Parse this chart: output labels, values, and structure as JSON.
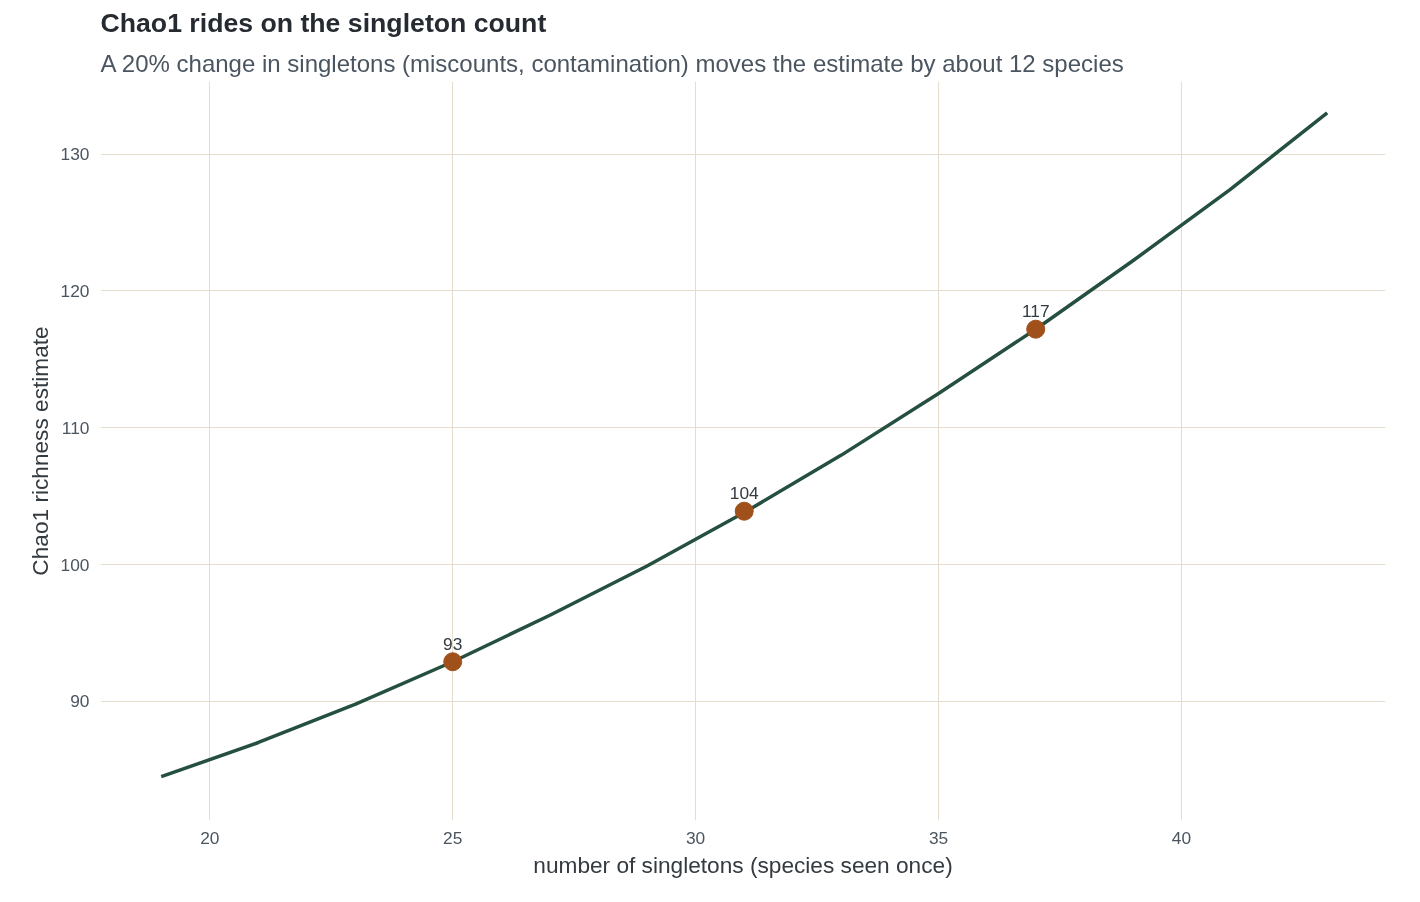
{
  "chart_data": {
    "type": "line",
    "title": "Chao1 rides on the singleton count",
    "subtitle": "A 20% change in singletons (miscounts, contamination) moves the estimate by about 12 species",
    "xlabel": "number of singletons (species seen once)",
    "ylabel": "Chao1 richness estimate",
    "series": [
      {
        "color": "#25503f",
        "x": [
          19,
          21,
          23,
          25,
          27,
          29,
          31,
          33,
          35,
          37,
          39,
          41,
          43
        ],
        "values": [
          84.5,
          87.0,
          89.8,
          92.9,
          96.3,
          99.9,
          103.8,
          108.0,
          112.5,
          117.2,
          122.2,
          127.4,
          133.0
        ]
      },
      {
        "type": "scatter",
        "color": "#a0501a",
        "marker": "circle",
        "x": [
          25,
          31,
          37
        ],
        "values": [
          92.9,
          103.9,
          117.2
        ],
        "value_labels": [
          "93",
          "104",
          "117"
        ]
      }
    ],
    "xlim": [
      17.75,
      44.2
    ],
    "ylim": [
      81.3,
      135.3
    ],
    "xticks": [
      20,
      25,
      30,
      35,
      40
    ],
    "yticks": [
      90,
      100,
      110,
      120,
      130
    ],
    "grid": true
  }
}
